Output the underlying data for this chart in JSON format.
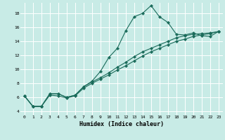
{
  "xlabel": "Humidex (Indice chaleur)",
  "bg_color": "#c8ebe6",
  "grid_color": "#ffffff",
  "line_color": "#1a6b5a",
  "xlim": [
    -0.5,
    23.5
  ],
  "ylim": [
    3.5,
    19.5
  ],
  "xticks": [
    0,
    1,
    2,
    3,
    4,
    5,
    6,
    7,
    8,
    9,
    10,
    11,
    12,
    13,
    14,
    15,
    16,
    17,
    18,
    19,
    20,
    21,
    22,
    23
  ],
  "yticks": [
    4,
    6,
    8,
    10,
    12,
    14,
    16,
    18
  ],
  "line1_x": [
    0,
    1,
    2,
    3,
    4,
    5,
    6,
    7,
    8,
    9,
    10,
    11,
    12,
    13,
    14,
    15,
    16,
    17,
    18,
    19,
    20,
    21,
    22,
    23
  ],
  "line1_y": [
    6.2,
    4.7,
    4.7,
    6.5,
    6.5,
    6.0,
    6.3,
    7.5,
    8.3,
    9.7,
    11.7,
    13.0,
    15.5,
    17.5,
    18.0,
    19.1,
    17.5,
    16.7,
    15.0,
    14.9,
    15.2,
    14.8,
    14.7,
    15.4
  ],
  "line2_x": [
    0,
    1,
    2,
    3,
    4,
    5,
    6,
    7,
    8,
    9,
    10,
    11,
    12,
    13,
    14,
    15,
    16,
    17,
    18,
    19,
    20,
    21,
    22,
    23
  ],
  "line2_y": [
    6.2,
    4.7,
    4.7,
    6.5,
    6.5,
    6.0,
    6.3,
    7.5,
    8.2,
    8.8,
    9.5,
    10.3,
    11.0,
    11.8,
    12.5,
    13.0,
    13.5,
    14.0,
    14.5,
    14.8,
    15.0,
    15.1,
    15.2,
    15.4
  ],
  "line3_x": [
    0,
    1,
    2,
    3,
    4,
    5,
    6,
    7,
    8,
    9,
    10,
    11,
    12,
    13,
    14,
    15,
    16,
    17,
    18,
    19,
    20,
    21,
    22,
    23
  ],
  "line3_y": [
    6.2,
    4.7,
    4.7,
    6.3,
    6.2,
    5.9,
    6.2,
    7.3,
    8.0,
    8.6,
    9.2,
    9.9,
    10.5,
    11.2,
    11.9,
    12.5,
    13.0,
    13.5,
    14.0,
    14.3,
    14.7,
    14.9,
    15.1,
    15.4
  ]
}
